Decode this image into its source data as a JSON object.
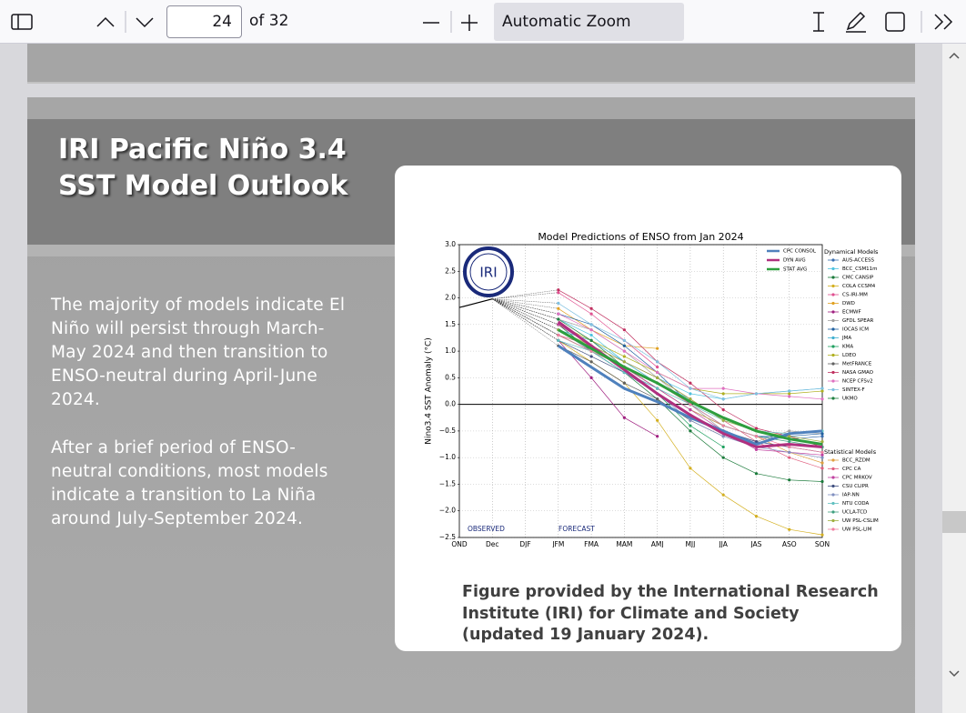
{
  "toolbar": {
    "page": "24",
    "page_count": "of 32",
    "zoom": "Automatic Zoom"
  },
  "slide": {
    "title": [
      "IRI Pacific Niño 3.4",
      "SST Model Outlook"
    ],
    "paragraphs": [
      [
        "The majority of models indicate El",
        "Niño will persist through March-",
        "May 2024 and then transition to",
        "ENSO-neutral during April-June",
        "2024."
      ],
      [
        "After a brief period of ENSO-",
        "neutral conditions, most models",
        "indicate a transition  to La Niña",
        "around July-September  2024."
      ]
    ],
    "caption": [
      "Figure provided by the International Research",
      "Institute (IRI) for Climate and Society",
      "(updated 19 January 2024)."
    ]
  },
  "chart_data": {
    "type": "line",
    "title": "Model Predictions of ENSO from Jan 2024",
    "y_label": "Nino3.4 SST Anomaly (°C)",
    "logo": "IRI",
    "annotations": [
      "OBSERVED",
      "FORECAST"
    ],
    "categories": [
      "OND",
      "Dec",
      "DJF",
      "JFM",
      "FMA",
      "MAM",
      "AMJ",
      "MJJ",
      "JJA",
      "JAS",
      "ASO",
      "SON"
    ],
    "ylim": [
      -2.5,
      3.0
    ],
    "yticks": [
      {
        "value": 3.0,
        "label": "3.0"
      },
      {
        "value": 2.5,
        "label": "2.5"
      },
      {
        "value": 2.0,
        "label": "2.0"
      },
      {
        "value": 1.5,
        "label": "1.5"
      },
      {
        "value": 1.0,
        "label": "1.0"
      },
      {
        "value": 0.5,
        "label": "0.5"
      },
      {
        "value": 0.0,
        "label": "0.0"
      },
      {
        "value": -0.5,
        "label": "−0.5"
      },
      {
        "value": -1.0,
        "label": "−1.0"
      },
      {
        "value": -1.5,
        "label": "−1.5"
      },
      {
        "value": -2.0,
        "label": "−2.0"
      },
      {
        "value": -2.5,
        "label": "−2.5"
      }
    ],
    "grid": true,
    "observed": {
      "color": "#000000",
      "values": [
        1.82,
        1.98,
        null,
        null,
        null,
        null,
        null,
        null,
        null,
        null,
        null,
        null
      ]
    },
    "averages": [
      {
        "name": "CPC CONSOL",
        "color": "#4f81bd",
        "values": [
          null,
          null,
          null,
          1.1,
          0.7,
          0.3,
          0.05,
          -0.25,
          -0.5,
          -0.75,
          -0.55,
          -0.5
        ]
      },
      {
        "name": "DYN AVG",
        "color": "#b0307f",
        "values": [
          null,
          null,
          null,
          1.55,
          1.1,
          0.65,
          0.2,
          -0.2,
          -0.55,
          -0.8,
          -0.75,
          -0.8
        ]
      },
      {
        "name": "STAT AVG",
        "color": "#2e9e3e",
        "values": [
          null,
          null,
          null,
          1.4,
          1.05,
          0.7,
          0.4,
          0.05,
          -0.25,
          -0.5,
          -0.65,
          -0.75
        ]
      }
    ],
    "groups": [
      {
        "title": "Dynamical Models",
        "series": [
          {
            "name": "AUS-ACCESS",
            "color": "#3a6fb0",
            "values": [
              null,
              null,
              null,
              1.3,
              1.0,
              0.6,
              0.3,
              -0.1,
              -0.4,
              -0.6,
              -0.65,
              -0.6
            ]
          },
          {
            "name": "BCC_CSM11m",
            "color": "#4fc3e0",
            "values": [
              null,
              null,
              null,
              1.6,
              1.3,
              0.8,
              0.5,
              0.2,
              0.1,
              0.2,
              0.25,
              0.3
            ]
          },
          {
            "name": "CMC CANSIP",
            "color": "#1a7a3a",
            "values": [
              null,
              null,
              null,
              1.5,
              1.0,
              0.6,
              0.1,
              -0.5,
              -1.0,
              -1.3,
              -1.42,
              -1.45
            ]
          },
          {
            "name": "COLA CCSM4",
            "color": "#d4b020",
            "values": [
              null,
              null,
              null,
              1.2,
              0.8,
              0.4,
              -0.3,
              -1.2,
              -1.7,
              -2.1,
              -2.35,
              -2.45
            ]
          },
          {
            "name": "CS-IRI-MM",
            "color": "#e05090",
            "values": [
              null,
              null,
              null,
              2.1,
              1.7,
              1.2,
              0.7,
              null,
              null,
              null,
              null,
              null
            ]
          },
          {
            "name": "DWD",
            "color": "#e0a020",
            "values": [
              null,
              null,
              null,
              1.8,
              1.4,
              1.1,
              1.05,
              null,
              null,
              null,
              null,
              null
            ]
          },
          {
            "name": "ECMWF",
            "color": "#a02080",
            "values": [
              null,
              null,
              null,
              1.2,
              0.5,
              -0.25,
              -0.6,
              null,
              null,
              null,
              null,
              null
            ]
          },
          {
            "name": "GFDL SPEAR",
            "color": "#a0a0a0",
            "values": [
              null,
              null,
              null,
              1.6,
              1.4,
              1.0,
              0.5,
              0.0,
              -0.5,
              -0.7,
              -0.5,
              -0.55
            ]
          },
          {
            "name": "IOCAS ICM",
            "color": "#2060a0",
            "values": [
              null,
              null,
              null,
              1.7,
              1.5,
              1.1,
              0.6,
              0.0,
              -0.4,
              -0.6,
              -0.6,
              -0.55
            ]
          },
          {
            "name": "JMA",
            "color": "#40b0d0",
            "values": [
              null,
              null,
              null,
              1.4,
              1.2,
              0.8,
              0.4,
              0.1,
              null,
              null,
              null,
              null
            ]
          },
          {
            "name": "KMA",
            "color": "#20a060",
            "values": [
              null,
              null,
              null,
              1.3,
              1.0,
              0.6,
              0.2,
              -0.4,
              -0.8,
              null,
              null,
              null
            ]
          },
          {
            "name": "LDEO",
            "color": "#b0b020",
            "values": [
              null,
              null,
              null,
              1.5,
              1.2,
              0.9,
              0.6,
              0.3,
              0.2,
              0.2,
              0.2,
              0.25
            ]
          },
          {
            "name": "MetFRANCE",
            "color": "#606060",
            "values": [
              null,
              null,
              null,
              1.1,
              0.8,
              0.4,
              0.1,
              -0.3,
              -0.6,
              null,
              null,
              null
            ]
          },
          {
            "name": "NASA GMAO",
            "color": "#c03060",
            "values": [
              null,
              null,
              null,
              2.15,
              1.8,
              1.4,
              0.8,
              0.4,
              -0.1,
              -0.45,
              -0.6,
              -0.8
            ]
          },
          {
            "name": "NCEP CFSv2",
            "color": "#e070c0",
            "values": [
              null,
              null,
              null,
              1.7,
              1.4,
              1.0,
              0.6,
              0.3,
              0.3,
              0.2,
              0.15,
              0.1
            ]
          },
          {
            "name": "SINTEX-F",
            "color": "#80c0e0",
            "values": [
              null,
              null,
              null,
              1.9,
              1.5,
              1.2,
              0.8,
              0.3,
              0.1,
              0.2,
              0.25,
              0.3
            ]
          },
          {
            "name": "UKMO",
            "color": "#208040",
            "values": [
              null,
              null,
              null,
              1.6,
              1.2,
              0.7,
              0.3,
              null,
              null,
              null,
              null,
              null
            ]
          }
        ]
      },
      {
        "title": "Statistical Models",
        "series": [
          {
            "name": "BCC_RZDM",
            "color": "#e0a040",
            "values": [
              null,
              null,
              null,
              1.3,
              1.0,
              0.7,
              0.3,
              -0.1,
              -0.4,
              -0.6,
              -0.9,
              -1.1
            ]
          },
          {
            "name": "CPC CA",
            "color": "#e06080",
            "values": [
              null,
              null,
              null,
              1.3,
              1.1,
              0.8,
              0.5,
              0.1,
              -0.3,
              -0.7,
              -1.0,
              -1.2
            ]
          },
          {
            "name": "CPC MRKOV",
            "color": "#c040a0",
            "values": [
              null,
              null,
              null,
              1.5,
              1.1,
              0.7,
              0.3,
              -0.1,
              -0.5,
              -0.85,
              -0.9,
              -0.95
            ]
          },
          {
            "name": "CSU CLIPR",
            "color": "#405080",
            "values": [
              null,
              null,
              null,
              1.2,
              0.9,
              0.6,
              0.2,
              -0.2,
              -0.5,
              -0.7,
              -0.8,
              -0.9
            ]
          },
          {
            "name": "IAP-NN",
            "color": "#8090c0",
            "values": [
              null,
              null,
              null,
              1.4,
              1.0,
              0.6,
              0.2,
              -0.3,
              -0.6,
              -0.8,
              -0.9,
              -1.0
            ]
          },
          {
            "name": "NTU CODA",
            "color": "#60c0c0",
            "values": [
              null,
              null,
              null,
              1.2,
              1.0,
              0.6,
              0.3,
              0.0,
              -0.3,
              -0.5,
              -0.55,
              -0.5
            ]
          },
          {
            "name": "UCLA-TCD",
            "color": "#40a080",
            "values": [
              null,
              null,
              null,
              1.3,
              1.0,
              0.7,
              0.4,
              0.0,
              -0.4,
              -0.6,
              -0.7,
              -0.8
            ]
          },
          {
            "name": "UW PSL-CSLIM",
            "color": "#a0b040",
            "values": [
              null,
              null,
              null,
              1.4,
              1.1,
              0.8,
              0.5,
              0.1,
              -0.3,
              -0.5,
              -0.6,
              -0.7
            ]
          },
          {
            "name": "UW PSL-LIM",
            "color": "#f080a0",
            "values": [
              null,
              null,
              null,
              1.3,
              1.0,
              0.7,
              0.4,
              0.0,
              -0.4,
              -0.6,
              -0.8,
              -0.9
            ]
          }
        ]
      }
    ]
  }
}
